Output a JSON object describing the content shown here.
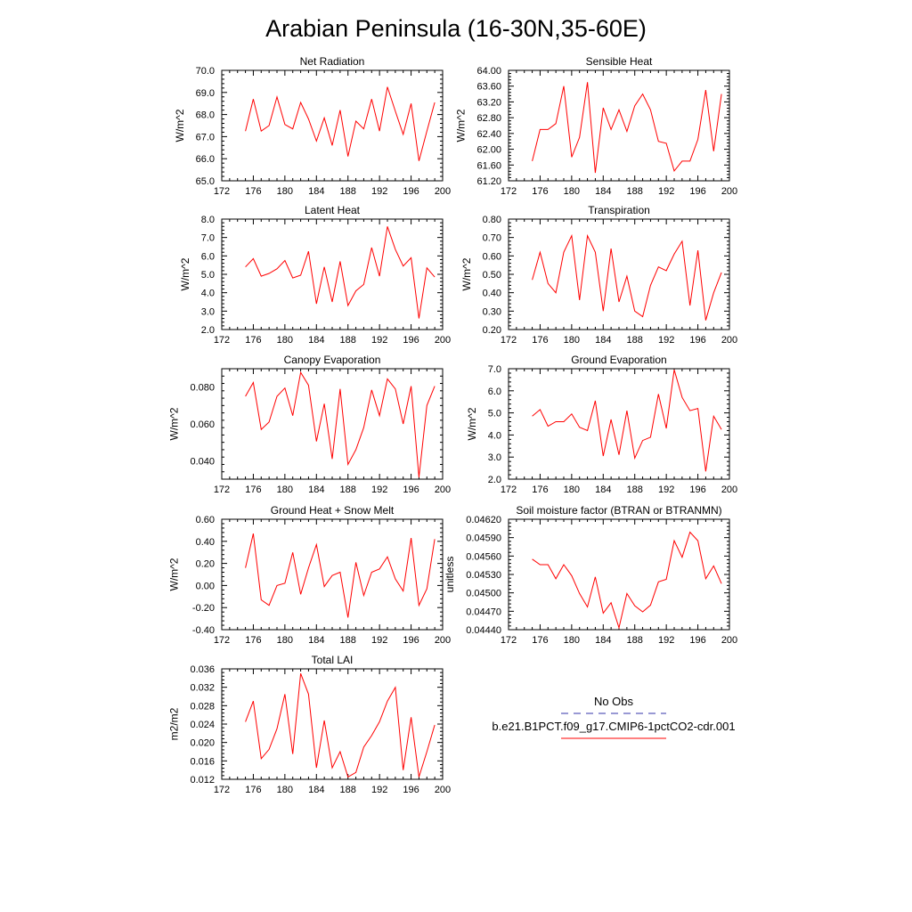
{
  "figure": {
    "title": "Arabian Peninsula (16-30N,35-60E)"
  },
  "colors": {
    "model_line": "#ff0000",
    "obs_line": "#3333aa",
    "axis": "#000000"
  },
  "legend": {
    "obs_label": "No Obs",
    "model_label": "b.e21.B1PCT.f09_g17.CMIP6-1pctCO2-cdr.001"
  },
  "chart_data": [
    {
      "type": "line",
      "title": "Net Radiation",
      "ylabel": "W/m^2",
      "xlim": [
        172,
        200
      ],
      "ylim": [
        65.0,
        70.0
      ],
      "xticks": [
        "172",
        "176",
        "180",
        "184",
        "188",
        "192",
        "196",
        "200"
      ],
      "yticks": [
        "65.0",
        "66.0",
        "67.0",
        "68.0",
        "69.0",
        "70.0"
      ],
      "x": [
        175,
        176,
        177,
        178,
        179,
        180,
        181,
        182,
        183,
        184,
        185,
        186,
        187,
        188,
        189,
        190,
        191,
        192,
        193,
        194,
        195,
        196,
        197,
        198,
        199
      ],
      "y": [
        67.25,
        68.7,
        67.25,
        67.5,
        68.8,
        67.55,
        67.35,
        68.55,
        67.8,
        66.8,
        67.85,
        66.6,
        68.2,
        66.1,
        67.7,
        67.35,
        68.7,
        67.25,
        69.25,
        68.15,
        67.1,
        68.5,
        65.9,
        67.25,
        68.55
      ]
    },
    {
      "type": "line",
      "title": "Sensible Heat",
      "ylabel": "W/m^2",
      "xlim": [
        172,
        200
      ],
      "ylim": [
        61.2,
        64.0
      ],
      "xticks": [
        "172",
        "176",
        "180",
        "184",
        "188",
        "192",
        "196",
        "200"
      ],
      "yticks": [
        "61.20",
        "61.60",
        "62.00",
        "62.40",
        "62.80",
        "63.20",
        "63.60",
        "64.00"
      ],
      "x": [
        175,
        176,
        177,
        178,
        179,
        180,
        181,
        182,
        183,
        184,
        185,
        186,
        187,
        188,
        189,
        190,
        191,
        192,
        193,
        194,
        195,
        196,
        197,
        198,
        199
      ],
      "y": [
        61.7,
        62.5,
        62.5,
        62.65,
        63.6,
        61.8,
        62.3,
        63.7,
        61.4,
        63.05,
        62.5,
        63.0,
        62.45,
        63.1,
        63.4,
        63.0,
        62.2,
        62.15,
        61.45,
        61.7,
        61.7,
        62.25,
        63.5,
        61.95,
        63.4
      ]
    },
    {
      "type": "line",
      "title": "Latent Heat",
      "ylabel": "W/m^2",
      "xlim": [
        172,
        200
      ],
      "ylim": [
        2.0,
        8.0
      ],
      "xticks": [
        "172",
        "176",
        "180",
        "184",
        "188",
        "192",
        "196",
        "200"
      ],
      "yticks": [
        "2.0",
        "3.0",
        "4.0",
        "5.0",
        "6.0",
        "7.0",
        "8.0"
      ],
      "x": [
        175,
        176,
        177,
        178,
        179,
        180,
        181,
        182,
        183,
        184,
        185,
        186,
        187,
        188,
        189,
        190,
        191,
        192,
        193,
        194,
        195,
        196,
        197,
        198,
        199
      ],
      "y": [
        5.4,
        5.85,
        4.9,
        5.05,
        5.3,
        5.75,
        4.8,
        4.95,
        6.25,
        3.4,
        5.4,
        3.5,
        5.7,
        3.3,
        4.1,
        4.45,
        6.45,
        4.9,
        7.6,
        6.35,
        5.45,
        5.9,
        2.6,
        5.35,
        4.85
      ]
    },
    {
      "type": "line",
      "title": "Transpiration",
      "ylabel": "W/m^2",
      "xlim": [
        172,
        200
      ],
      "ylim": [
        0.2,
        0.8
      ],
      "xticks": [
        "172",
        "176",
        "180",
        "184",
        "188",
        "192",
        "196",
        "200"
      ],
      "yticks": [
        "0.20",
        "0.30",
        "0.40",
        "0.50",
        "0.60",
        "0.70",
        "0.80"
      ],
      "x": [
        175,
        176,
        177,
        178,
        179,
        180,
        181,
        182,
        183,
        184,
        185,
        186,
        187,
        188,
        189,
        190,
        191,
        192,
        193,
        194,
        195,
        196,
        197,
        198,
        199
      ],
      "y": [
        0.47,
        0.62,
        0.45,
        0.4,
        0.62,
        0.71,
        0.36,
        0.71,
        0.62,
        0.3,
        0.64,
        0.35,
        0.49,
        0.3,
        0.27,
        0.44,
        0.54,
        0.52,
        0.61,
        0.68,
        0.33,
        0.63,
        0.25,
        0.4,
        0.51
      ]
    },
    {
      "type": "line",
      "title": "Canopy Evaporation",
      "ylabel": "W/m^2",
      "xlim": [
        172,
        200
      ],
      "ylim": [
        0.03,
        0.09
      ],
      "xticks": [
        "172",
        "176",
        "180",
        "184",
        "188",
        "192",
        "196",
        "200"
      ],
      "yticks": [
        "0.040",
        "0.060",
        "0.080"
      ],
      "x": [
        175,
        176,
        177,
        178,
        179,
        180,
        181,
        182,
        183,
        184,
        185,
        186,
        187,
        188,
        189,
        190,
        191,
        192,
        193,
        194,
        195,
        196,
        197,
        198,
        199
      ],
      "y": [
        0.075,
        0.0825,
        0.057,
        0.061,
        0.075,
        0.0795,
        0.0645,
        0.088,
        0.081,
        0.0505,
        0.071,
        0.041,
        0.079,
        0.038,
        0.046,
        0.058,
        0.0785,
        0.0645,
        0.0845,
        0.079,
        0.06,
        0.0805,
        0.031,
        0.07,
        0.0805
      ]
    },
    {
      "type": "line",
      "title": "Ground Evaporation",
      "ylabel": "W/m^2",
      "xlim": [
        172,
        200
      ],
      "ylim": [
        2.0,
        7.0
      ],
      "xticks": [
        "172",
        "176",
        "180",
        "184",
        "188",
        "192",
        "196",
        "200"
      ],
      "yticks": [
        "2.0",
        "3.0",
        "4.0",
        "5.0",
        "6.0",
        "7.0"
      ],
      "x": [
        175,
        176,
        177,
        178,
        179,
        180,
        181,
        182,
        183,
        184,
        185,
        186,
        187,
        188,
        189,
        190,
        191,
        192,
        193,
        194,
        195,
        196,
        197,
        198,
        199
      ],
      "y": [
        4.85,
        5.15,
        4.4,
        4.6,
        4.6,
        4.95,
        4.35,
        4.2,
        5.55,
        3.05,
        4.7,
        3.1,
        5.1,
        2.95,
        3.75,
        3.9,
        5.85,
        4.3,
        6.95,
        5.7,
        5.1,
        5.2,
        2.35,
        4.85,
        4.25
      ]
    },
    {
      "type": "line",
      "title": "Ground Heat + Snow Melt",
      "ylabel": "W/m^2",
      "xlim": [
        172,
        200
      ],
      "ylim": [
        -0.4,
        0.6
      ],
      "xticks": [
        "172",
        "176",
        "180",
        "184",
        "188",
        "192",
        "196",
        "200"
      ],
      "yticks": [
        "-0.40",
        "-0.20",
        "0.00",
        "0.20",
        "0.40",
        "0.60"
      ],
      "x": [
        175,
        176,
        177,
        178,
        179,
        180,
        181,
        182,
        183,
        184,
        185,
        186,
        187,
        188,
        189,
        190,
        191,
        192,
        193,
        194,
        195,
        196,
        197,
        198,
        199
      ],
      "y": [
        0.16,
        0.47,
        -0.13,
        -0.18,
        0.0,
        0.02,
        0.3,
        -0.08,
        0.16,
        0.37,
        -0.01,
        0.09,
        0.12,
        -0.29,
        0.21,
        -0.09,
        0.12,
        0.15,
        0.26,
        0.06,
        -0.05,
        0.43,
        -0.18,
        -0.03,
        0.42
      ]
    },
    {
      "type": "line",
      "title": "Soil moisture factor (BTRAN or BTRANMN)",
      "ylabel": "unitless",
      "xlim": [
        172,
        200
      ],
      "ylim": [
        0.0444,
        0.0462
      ],
      "xticks": [
        "172",
        "176",
        "180",
        "184",
        "188",
        "192",
        "196",
        "200"
      ],
      "yticks": [
        "0.04440",
        "0.04470",
        "0.04500",
        "0.04530",
        "0.04560",
        "0.04590",
        "0.04620"
      ],
      "x": [
        175,
        176,
        177,
        178,
        179,
        180,
        181,
        182,
        183,
        184,
        185,
        186,
        187,
        188,
        189,
        190,
        191,
        192,
        193,
        194,
        195,
        196,
        197,
        198,
        199
      ],
      "y": [
        0.04555,
        0.04546,
        0.04546,
        0.04523,
        0.04546,
        0.04528,
        0.04499,
        0.04477,
        0.04526,
        0.04467,
        0.04484,
        0.04443,
        0.04499,
        0.04479,
        0.04469,
        0.0448,
        0.04518,
        0.04522,
        0.04585,
        0.04558,
        0.04599,
        0.04585,
        0.04523,
        0.04544,
        0.04515
      ]
    },
    {
      "type": "line",
      "title": "Total LAI",
      "ylabel": "m2/m2",
      "xlim": [
        172,
        200
      ],
      "ylim": [
        0.012,
        0.036
      ],
      "xticks": [
        "172",
        "176",
        "180",
        "184",
        "188",
        "192",
        "196",
        "200"
      ],
      "yticks": [
        "0.012",
        "0.016",
        "0.020",
        "0.024",
        "0.028",
        "0.032",
        "0.036"
      ],
      "x": [
        175,
        176,
        177,
        178,
        179,
        180,
        181,
        182,
        183,
        184,
        185,
        186,
        187,
        188,
        189,
        190,
        191,
        192,
        193,
        194,
        195,
        196,
        197,
        198,
        199
      ],
      "y": [
        0.0245,
        0.029,
        0.0165,
        0.0185,
        0.023,
        0.0305,
        0.0175,
        0.035,
        0.0305,
        0.0145,
        0.0248,
        0.0145,
        0.018,
        0.0125,
        0.0135,
        0.019,
        0.0215,
        0.0245,
        0.029,
        0.032,
        0.014,
        0.0255,
        0.0125,
        0.018,
        0.0238
      ]
    }
  ]
}
